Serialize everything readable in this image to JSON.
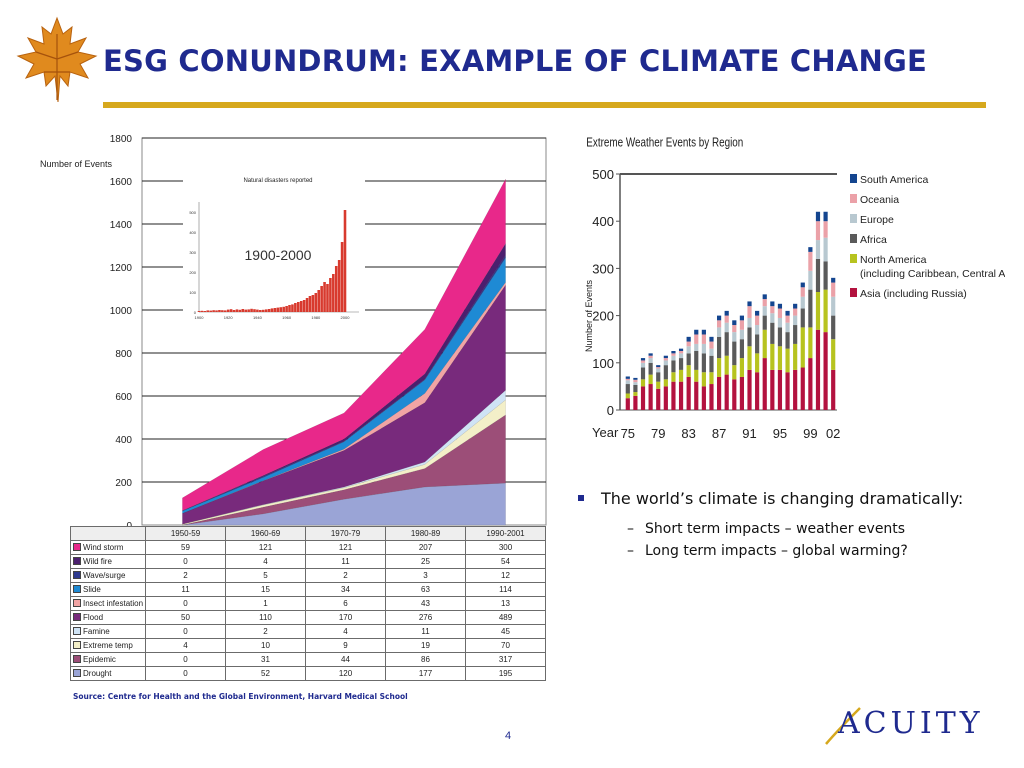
{
  "slide": {
    "title": "ESG CONUNDRUM: EXAMPLE OF CLIMATE CHANGE",
    "page_number": "4",
    "source_note": "Source: Centre for Health and the Global Environment, Harvard Medical School",
    "logo_text": "ACUITY",
    "colors": {
      "title": "#1f2a8f",
      "rule": "#d6a81d",
      "leaf": "#e08a1e"
    },
    "bullets": [
      {
        "text": "The world’s climate is changing dramatically:",
        "sub": [
          "Short term impacts – weather events",
          "Long term impacts – global warming?"
        ]
      }
    ]
  },
  "chart_data": [
    {
      "type": "area",
      "stacked": true,
      "ylabel": "Number of Events",
      "ylim": [
        0,
        1800
      ],
      "yticks": [
        0,
        200,
        400,
        600,
        800,
        1000,
        1200,
        1400,
        1600,
        1800
      ],
      "grid": true,
      "categories": [
        "1950-59",
        "1960-69",
        "1970-79",
        "1980-89",
        "1990-2001"
      ],
      "series": [
        {
          "name": "Drought",
          "color": "#9aa4d6",
          "values": [
            0,
            52,
            120,
            177,
            195
          ]
        },
        {
          "name": "Epidemic",
          "color": "#9c4e78",
          "values": [
            0,
            31,
            44,
            86,
            317
          ]
        },
        {
          "name": "Extreme temp",
          "color": "#f3efc8",
          "values": [
            4,
            10,
            9,
            19,
            70
          ]
        },
        {
          "name": "Famine",
          "color": "#cfe3f5",
          "values": [
            0,
            2,
            4,
            11,
            45
          ]
        },
        {
          "name": "Flood",
          "color": "#782a7c",
          "values": [
            50,
            110,
            170,
            276,
            489
          ]
        },
        {
          "name": "Insect infestation",
          "color": "#f1a4a4",
          "values": [
            0,
            1,
            6,
            43,
            13
          ]
        },
        {
          "name": "Slide",
          "color": "#1e8ad4",
          "values": [
            11,
            15,
            34,
            63,
            114
          ]
        },
        {
          "name": "Wave/surge",
          "color": "#2e3a8f",
          "values": [
            2,
            5,
            2,
            3,
            12
          ]
        },
        {
          "name": "Wild fire",
          "color": "#4b1f6e",
          "values": [
            0,
            4,
            11,
            25,
            54
          ]
        },
        {
          "name": "Wind storm",
          "color": "#e8288a",
          "values": [
            59,
            121,
            121,
            207,
            300
          ]
        }
      ],
      "table_order": [
        "Wind storm",
        "Wild fire",
        "Wave/surge",
        "Slide",
        "Insect infestation",
        "Flood",
        "Famine",
        "Extreme temp",
        "Epidemic",
        "Drought"
      ]
    },
    {
      "type": "bar",
      "title": "Natural disasters reported",
      "annotation": "1900-2000",
      "x_tick_labels": [
        "1900",
        "1920",
        "1940",
        "1960",
        "1980",
        "2000"
      ],
      "yticks": [
        0,
        100,
        200,
        300,
        400,
        500
      ],
      "ylim": [
        0,
        550
      ],
      "x_range": [
        1900,
        2000
      ],
      "color": "#d83a2e",
      "x": [
        1900,
        1902,
        1904,
        1906,
        1908,
        1910,
        1912,
        1914,
        1916,
        1918,
        1920,
        1922,
        1924,
        1926,
        1928,
        1930,
        1932,
        1934,
        1936,
        1938,
        1940,
        1942,
        1944,
        1946,
        1948,
        1950,
        1952,
        1954,
        1956,
        1958,
        1960,
        1962,
        1964,
        1966,
        1968,
        1970,
        1972,
        1974,
        1976,
        1978,
        1980,
        1982,
        1984,
        1986,
        1988,
        1990,
        1992,
        1994,
        1996,
        1998,
        2000
      ],
      "values": [
        5,
        6,
        5,
        8,
        7,
        9,
        8,
        10,
        9,
        8,
        12,
        14,
        10,
        13,
        11,
        15,
        12,
        13,
        16,
        14,
        12,
        10,
        11,
        13,
        15,
        18,
        20,
        22,
        24,
        26,
        30,
        35,
        38,
        45,
        50,
        55,
        60,
        70,
        80,
        85,
        95,
        110,
        130,
        150,
        140,
        170,
        190,
        230,
        260,
        350,
        510
      ]
    },
    {
      "type": "bar",
      "stacked": true,
      "title": "Extreme Weather Events by Region",
      "ylabel": "Number of Events",
      "xlabel": "Year",
      "ylim": [
        0,
        500
      ],
      "yticks": [
        0,
        100,
        200,
        300,
        400,
        500
      ],
      "categories": [
        "75",
        "76",
        "77",
        "78",
        "79",
        "80",
        "81",
        "82",
        "83",
        "84",
        "85",
        "86",
        "87",
        "88",
        "89",
        "90",
        "91",
        "92",
        "93",
        "94",
        "95",
        "96",
        "97",
        "98",
        "99",
        "00",
        "01",
        "02"
      ],
      "x_tick_labels": [
        "75",
        "79",
        "83",
        "87",
        "91",
        "95",
        "99",
        "02"
      ],
      "series": [
        {
          "name": "Asia (including Russia)",
          "color": "#b3123f",
          "values": [
            25,
            30,
            50,
            55,
            45,
            50,
            60,
            60,
            70,
            60,
            50,
            55,
            70,
            75,
            65,
            70,
            85,
            80,
            110,
            85,
            85,
            80,
            85,
            90,
            110,
            170,
            165,
            85
          ]
        },
        {
          "name": "North America (including Caribbean, Central America)",
          "color": "#b7c31f",
          "values": [
            10,
            8,
            15,
            20,
            15,
            15,
            20,
            25,
            25,
            25,
            30,
            25,
            40,
            40,
            30,
            40,
            50,
            40,
            60,
            55,
            50,
            50,
            55,
            85,
            65,
            80,
            90,
            65
          ]
        },
        {
          "name": "Africa",
          "color": "#5a5a5a",
          "values": [
            20,
            15,
            25,
            25,
            20,
            30,
            25,
            25,
            25,
            40,
            40,
            35,
            45,
            50,
            50,
            40,
            40,
            40,
            30,
            45,
            40,
            35,
            40,
            40,
            80,
            70,
            60,
            50
          ]
        },
        {
          "name": "Europe",
          "color": "#b8c8d0",
          "values": [
            8,
            6,
            10,
            10,
            8,
            10,
            10,
            10,
            15,
            15,
            20,
            15,
            20,
            20,
            20,
            20,
            20,
            20,
            20,
            20,
            20,
            20,
            20,
            25,
            40,
            40,
            50,
            40
          ]
        },
        {
          "name": "Oceania",
          "color": "#eba1a8",
          "values": [
            3,
            5,
            5,
            5,
            3,
            5,
            5,
            5,
            10,
            20,
            20,
            15,
            15,
            15,
            15,
            20,
            25,
            20,
            15,
            15,
            20,
            15,
            15,
            20,
            40,
            40,
            35,
            30
          ]
        },
        {
          "name": "South America",
          "color": "#14458f",
          "values": [
            5,
            4,
            5,
            5,
            4,
            5,
            5,
            5,
            10,
            10,
            10,
            10,
            10,
            10,
            10,
            10,
            10,
            10,
            10,
            10,
            10,
            10,
            10,
            10,
            10,
            20,
            20,
            10
          ]
        }
      ],
      "legend_placement": "right"
    }
  ]
}
